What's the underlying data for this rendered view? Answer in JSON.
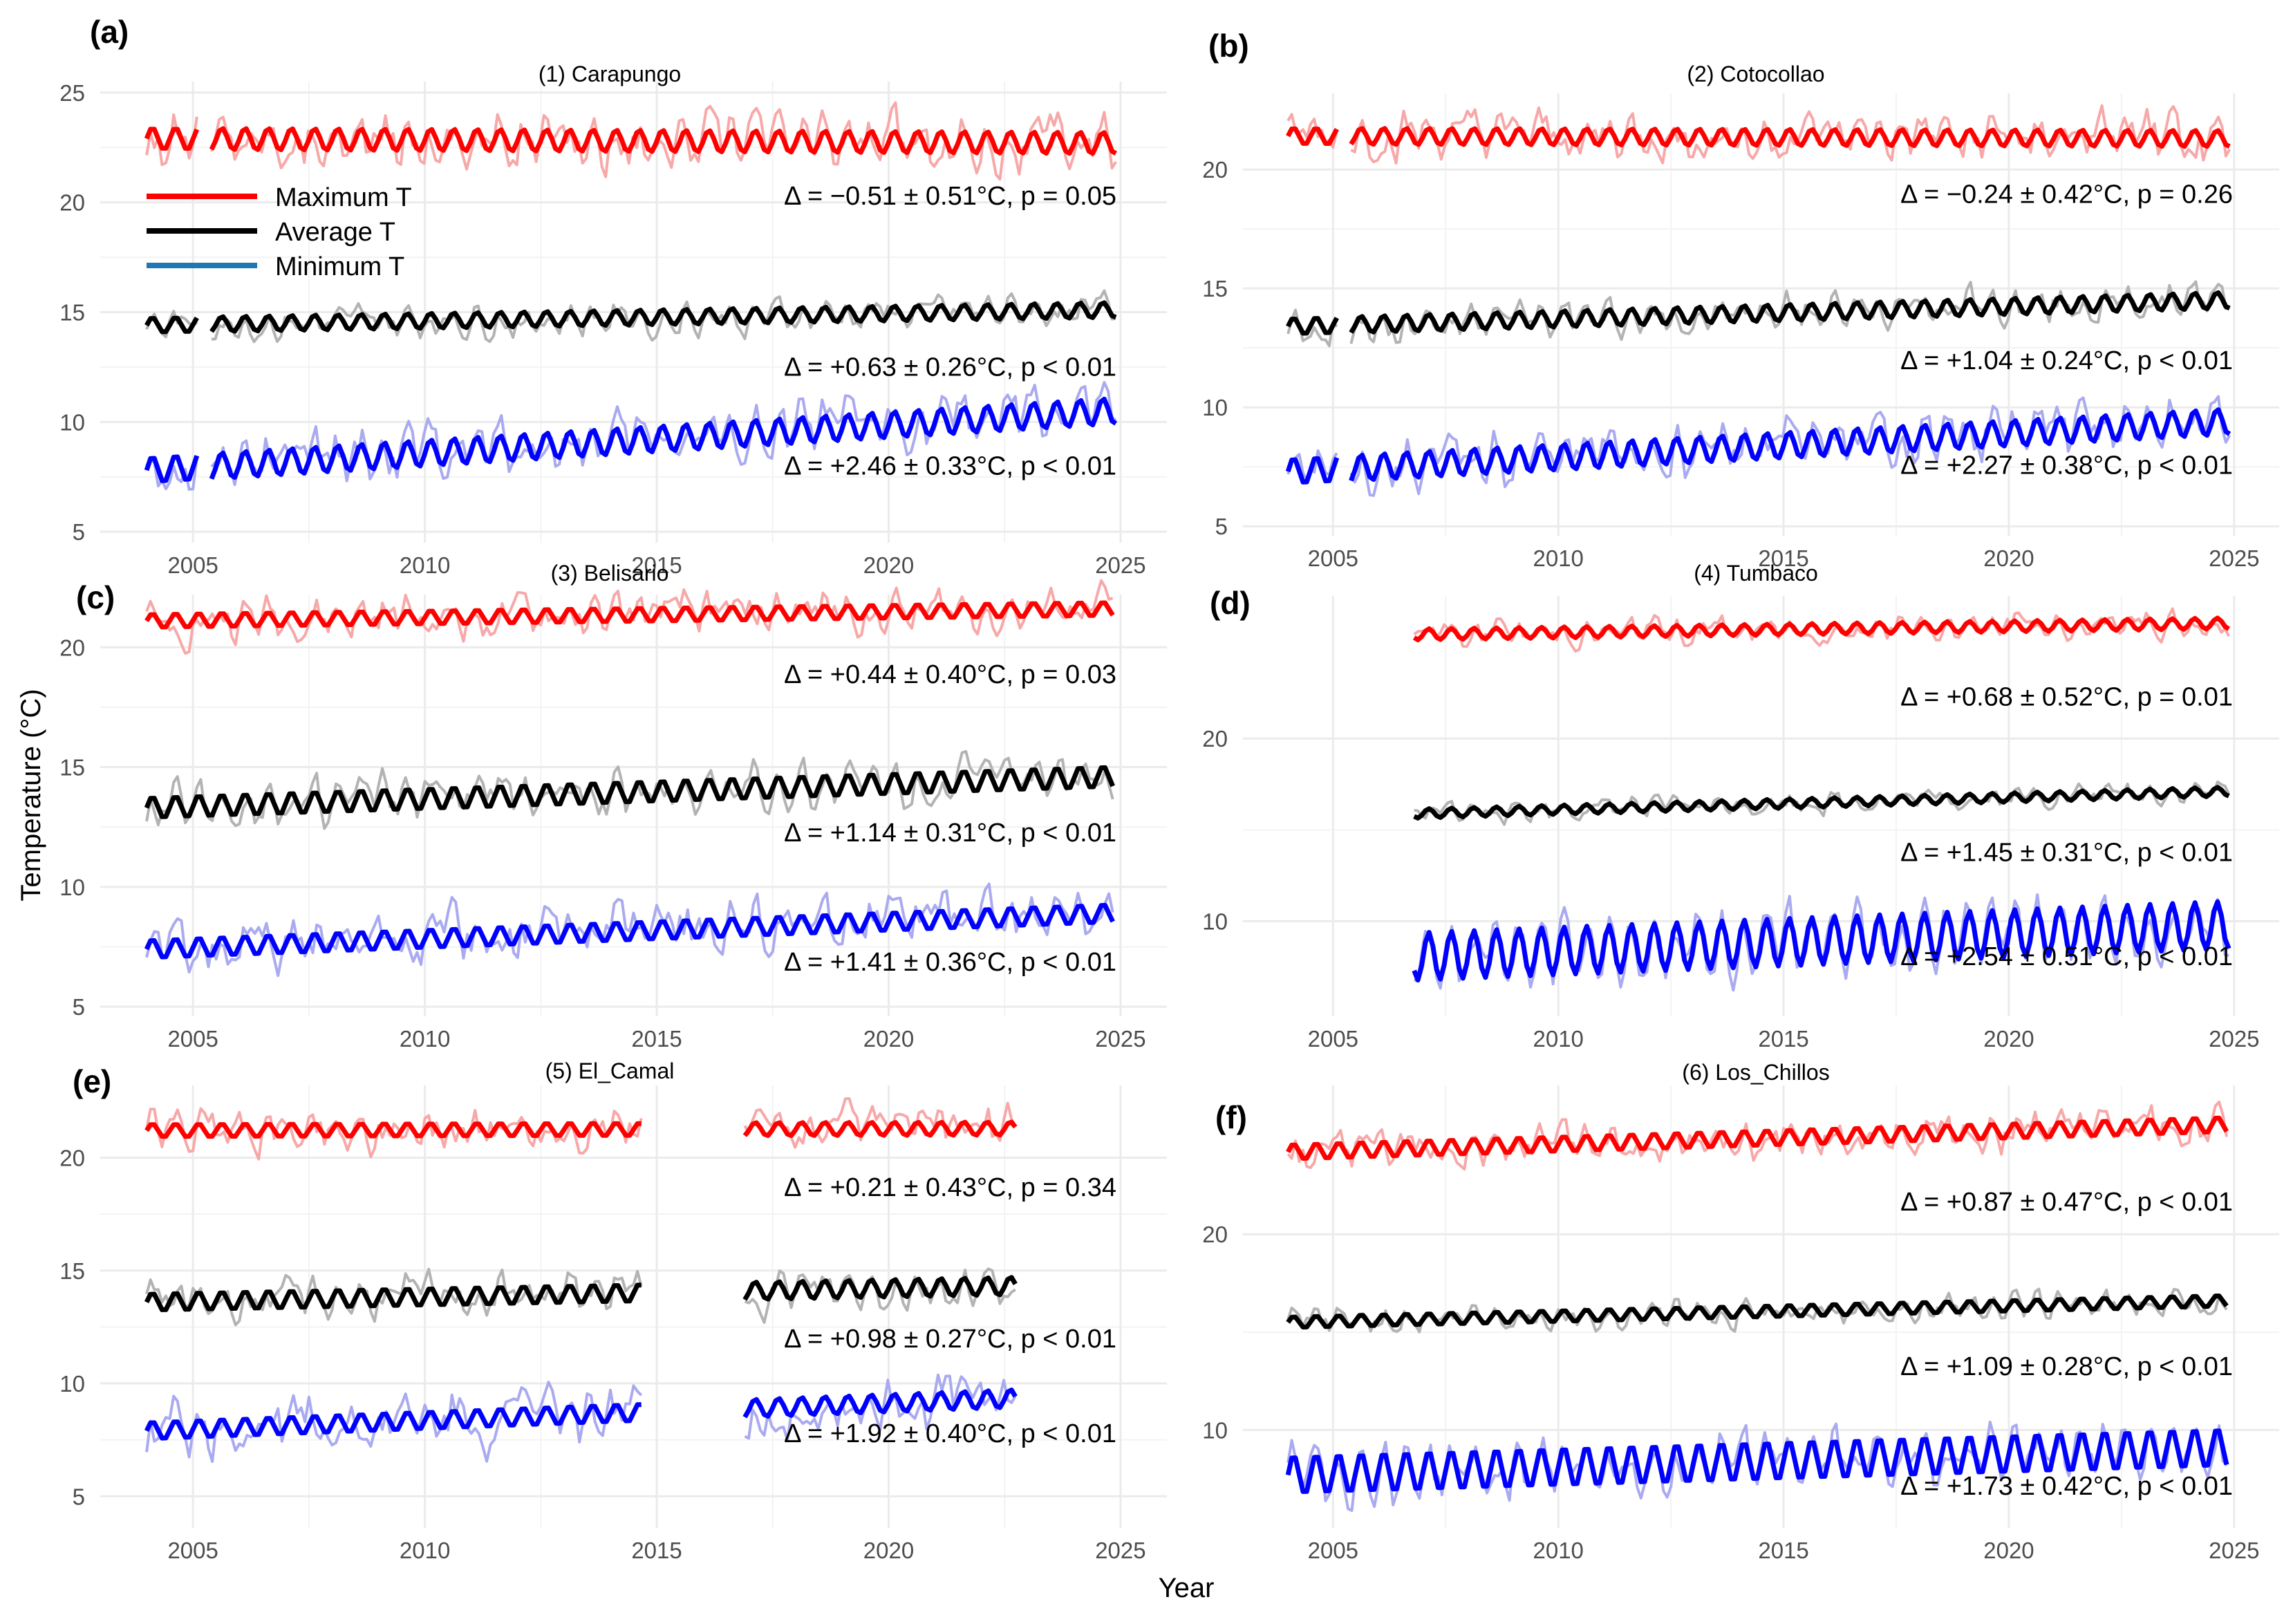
{
  "figure": {
    "xlabel": "Year",
    "ylabel": "Temperature (°C)"
  },
  "legend": [
    {
      "label": "Maximum T",
      "color": "#ff0000"
    },
    {
      "label": "Average T",
      "color": "#000000"
    },
    {
      "label": "Minimum T",
      "color": "#1f77b4"
    }
  ],
  "colors": {
    "max": "#ff0000",
    "avg": "#000000",
    "min": "#0000ff",
    "max_raw": "#f7a8a8",
    "avg_raw": "#b3b3b3",
    "min_raw": "#aaaaf0",
    "grid": "#ebebeb"
  },
  "chart_data": [
    {
      "type": "line",
      "panel": "(a)",
      "title": "(1) Carapungo",
      "xlim": [
        2003,
        2026
      ],
      "xticks": [
        2005,
        2010,
        2015,
        2020,
        2025
      ],
      "ylim": [
        4.5,
        25.5
      ],
      "yticks": [
        5,
        10,
        15,
        20,
        25
      ],
      "segments": [
        [
          2004.0,
          2005.1
        ],
        [
          2005.4,
          2024.9
        ]
      ],
      "series": [
        {
          "name": "Maximum T",
          "start": 22.9,
          "end": 22.7,
          "amp": 0.5,
          "noise": 1.0
        },
        {
          "name": "Average T",
          "start": 14.4,
          "end": 15.1,
          "amp": 0.35,
          "noise": 0.55
        },
        {
          "name": "Minimum T",
          "start": 7.8,
          "end": 10.5,
          "amp": 0.6,
          "noise": 0.9
        }
      ],
      "annotations": [
        {
          "text": "Δ = −0.51 ± 0.51°C, p = 0.05",
          "y": 19.9
        },
        {
          "text": "Δ = +0.63 ± 0.26°C, p < 0.01",
          "y": 12.1
        },
        {
          "text": "Δ = +2.46 ± 0.33°C, p < 0.01",
          "y": 7.6
        }
      ]
    },
    {
      "type": "line",
      "panel": "(b)",
      "title": "(2) Cotocollao",
      "xlim": [
        2003,
        2026
      ],
      "xticks": [
        2005,
        2010,
        2015,
        2020,
        2025
      ],
      "ylim": [
        4.6,
        23.2
      ],
      "yticks": [
        5,
        10,
        15,
        20
      ],
      "segments": [
        [
          2004.0,
          2005.1
        ],
        [
          2005.4,
          2024.9
        ]
      ],
      "series": [
        {
          "name": "Maximum T",
          "start": 21.4,
          "end": 21.3,
          "amp": 0.35,
          "noise": 0.8
        },
        {
          "name": "Average T",
          "start": 13.4,
          "end": 14.5,
          "amp": 0.35,
          "noise": 0.55
        },
        {
          "name": "Minimum T",
          "start": 7.3,
          "end": 9.4,
          "amp": 0.55,
          "noise": 0.8
        }
      ],
      "annotations": [
        {
          "text": "Δ = −0.24 ± 0.42°C, p = 0.26",
          "y": 18.6
        },
        {
          "text": "Δ = +1.04 ± 0.24°C, p < 0.01",
          "y": 11.6
        },
        {
          "text": "Δ = +2.27 ± 0.38°C, p < 0.01",
          "y": 7.2
        }
      ]
    },
    {
      "type": "line",
      "panel": "(c)",
      "title": "(3) Belisario",
      "xlim": [
        2003,
        2026
      ],
      "xticks": [
        2005,
        2010,
        2015,
        2020,
        2025
      ],
      "ylim": [
        4.6,
        22.2
      ],
      "yticks": [
        5,
        10,
        15,
        20
      ],
      "segments": [
        [
          2004.0,
          2024.9
        ]
      ],
      "series": [
        {
          "name": "Maximum T",
          "start": 21.1,
          "end": 21.6,
          "amp": 0.3,
          "noise": 0.7
        },
        {
          "name": "Average T",
          "start": 13.3,
          "end": 14.6,
          "amp": 0.45,
          "noise": 0.7
        },
        {
          "name": "Minimum T",
          "start": 7.4,
          "end": 8.9,
          "amp": 0.4,
          "noise": 0.9
        }
      ],
      "annotations": [
        {
          "text": "Δ = +0.44 ± 0.40°C, p = 0.03",
          "y": 18.5
        },
        {
          "text": "Δ = +1.14 ± 0.31°C, p < 0.01",
          "y": 11.9
        },
        {
          "text": "Δ = +1.41 ± 0.36°C, p < 0.01",
          "y": 6.5
        }
      ]
    },
    {
      "type": "line",
      "panel": "(d)",
      "title": "(4) Tumbaco",
      "xlim": [
        2003,
        2026
      ],
      "xticks": [
        2005,
        2010,
        2015,
        2020,
        2025
      ],
      "ylim": [
        4.8,
        27.8
      ],
      "yticks": [
        10,
        20
      ],
      "segments": [
        [
          2006.8,
          2024.9
        ]
      ],
      "series": [
        {
          "name": "Maximum T",
          "start": 25.6,
          "end": 26.3,
          "amp": 0.3,
          "noise": 0.55
        },
        {
          "name": "Average T",
          "start": 15.7,
          "end": 17.1,
          "amp": 0.25,
          "noise": 0.45
        },
        {
          "name": "Minimum T",
          "start": 7.8,
          "end": 9.8,
          "amp": 1.3,
          "noise": 0.9
        }
      ],
      "annotations": [
        {
          "text": "Δ = +0.68 ± 0.52°C, p = 0.01",
          "y": 21.8
        },
        {
          "text": "Δ = +1.45 ± 0.31°C, p < 0.01",
          "y": 13.3
        },
        {
          "text": "Δ = +2.54 ± 0.51°C, p < 0.01",
          "y": 7.6
        }
      ]
    },
    {
      "type": "line",
      "panel": "(e)",
      "title": "(5) El_Camal",
      "xlim": [
        2003,
        2026
      ],
      "xticks": [
        2005,
        2010,
        2015,
        2020,
        2025
      ],
      "ylim": [
        3.6,
        23.2
      ],
      "yticks": [
        5,
        10,
        15,
        20
      ],
      "segments": [
        [
          2004.0,
          2014.7
        ],
        [
          2016.9,
          2022.8
        ]
      ],
      "series": [
        {
          "name": "Maximum T",
          "start": 21.2,
          "end": 21.3,
          "amp": 0.3,
          "noise": 0.8
        },
        {
          "name": "Average T",
          "start": 13.6,
          "end": 14.4,
          "amp": 0.4,
          "noise": 0.7
        },
        {
          "name": "Minimum T",
          "start": 7.9,
          "end": 9.5,
          "amp": 0.4,
          "noise": 1.1
        }
      ],
      "annotations": [
        {
          "text": "Δ = +0.21 ± 0.43°C, p = 0.34",
          "y": 18.3
        },
        {
          "text": "Δ = +0.98 ± 0.27°C, p < 0.01",
          "y": 11.6
        },
        {
          "text": "Δ = +1.92 ± 0.40°C, p < 0.01",
          "y": 7.4
        }
      ]
    },
    {
      "type": "line",
      "panel": "(f)",
      "title": "(6) Los_Chillos",
      "xlim": [
        2003,
        2026
      ],
      "xticks": [
        2005,
        2010,
        2015,
        2020,
        2025
      ],
      "ylim": [
        5.0,
        27.6
      ],
      "yticks": [
        10,
        20
      ],
      "segments": [
        [
          2004.0,
          2024.9
        ]
      ],
      "series": [
        {
          "name": "Maximum T",
          "start": 24.2,
          "end": 25.6,
          "amp": 0.4,
          "noise": 0.75
        },
        {
          "name": "Average T",
          "start": 15.5,
          "end": 16.6,
          "amp": 0.3,
          "noise": 0.5
        },
        {
          "name": "Minimum T",
          "start": 7.7,
          "end": 9.1,
          "amp": 1.0,
          "noise": 0.9
        }
      ],
      "annotations": [
        {
          "text": "Δ = +0.87 ± 0.47°C, p < 0.01",
          "y": 21.2
        },
        {
          "text": "Δ = +1.09 ± 0.28°C, p < 0.01",
          "y": 12.8
        },
        {
          "text": "Δ = +1.73 ± 0.42°C, p < 0.01",
          "y": 6.7
        }
      ]
    }
  ]
}
